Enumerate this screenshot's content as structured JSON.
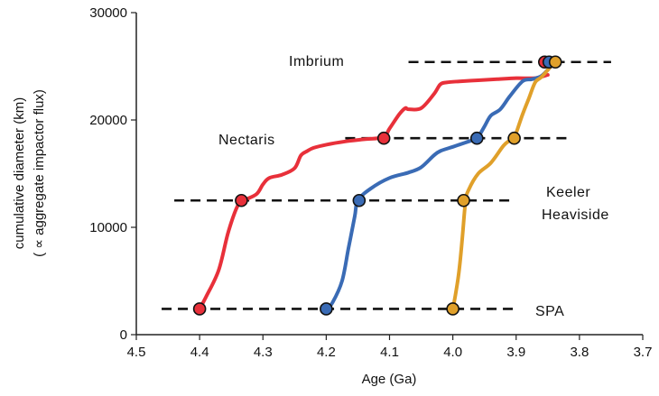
{
  "chart_data": {
    "type": "line",
    "title": "",
    "xlabel": "Age (Ga)",
    "ylabel_line1": "cumulative diameter (km)",
    "ylabel_line2": "( ∝ aggregate impactor flux)",
    "xlim": [
      4.5,
      3.7
    ],
    "ylim": [
      0,
      30000
    ],
    "x_reversed": true,
    "grid": false,
    "x_ticks": [
      "4.5",
      "4.4",
      "4.3",
      "4.2",
      "4.1",
      "4.0",
      "3.9",
      "3.8",
      "3.7"
    ],
    "y_ticks": [
      "0",
      "10000",
      "20000",
      "30000"
    ],
    "series": [
      {
        "color": "#e8303a",
        "x": [
          4.4,
          4.39,
          4.37,
          4.355,
          4.34,
          4.33,
          4.31,
          4.3,
          4.29,
          4.27,
          4.25,
          4.24,
          4.23,
          4.22,
          4.2,
          4.17,
          4.14,
          4.11,
          4.1,
          4.085,
          4.075,
          4.07,
          4.05,
          4.03,
          4.02,
          4.01,
          3.99,
          3.96,
          3.93,
          3.9,
          3.87,
          3.85
        ],
        "y": [
          2400,
          3500,
          6000,
          9500,
          12000,
          12500,
          13100,
          14000,
          14600,
          14900,
          15500,
          16700,
          17100,
          17400,
          17700,
          18000,
          18200,
          18400,
          19200,
          20500,
          21100,
          21000,
          21100,
          22400,
          23300,
          23500,
          23600,
          23700,
          23800,
          23900,
          23900,
          24200
        ]
      },
      {
        "color": "#3a6bb5",
        "x": [
          4.2,
          4.19,
          4.175,
          4.165,
          4.155,
          4.15,
          4.13,
          4.1,
          4.07,
          4.05,
          4.03,
          4.02,
          4.0,
          3.98,
          3.965,
          3.96,
          3.95,
          3.94,
          3.925,
          3.91,
          3.89,
          3.875,
          3.86,
          3.845
        ],
        "y": [
          2400,
          3000,
          5000,
          8000,
          11000,
          12500,
          13600,
          14600,
          15100,
          15600,
          16700,
          17100,
          17500,
          17900,
          18200,
          18400,
          19400,
          20400,
          21000,
          22200,
          23600,
          23800,
          24100,
          25000
        ]
      },
      {
        "color": "#e0a02a",
        "x": [
          4.0,
          3.995,
          3.99,
          3.985,
          3.98,
          3.975,
          3.96,
          3.94,
          3.92,
          3.91,
          3.905,
          3.9,
          3.89,
          3.88,
          3.87,
          3.86,
          3.845
        ],
        "y": [
          2400,
          4000,
          6000,
          9000,
          12400,
          13500,
          15000,
          16000,
          17600,
          18100,
          18300,
          18800,
          20500,
          22000,
          23500,
          24000,
          25000
        ]
      }
    ],
    "markers": [
      {
        "x": 4.4,
        "y": 2400,
        "color": "#e8303a"
      },
      {
        "x": 4.334,
        "y": 12500,
        "color": "#e8303a"
      },
      {
        "x": 4.109,
        "y": 18300,
        "color": "#e8303a"
      },
      {
        "x": 3.855,
        "y": 25400,
        "color": "#e8303a"
      },
      {
        "x": 4.2,
        "y": 2400,
        "color": "#3a6bb5"
      },
      {
        "x": 4.148,
        "y": 12500,
        "color": "#3a6bb5"
      },
      {
        "x": 3.962,
        "y": 18300,
        "color": "#3a6bb5"
      },
      {
        "x": 3.848,
        "y": 25400,
        "color": "#3a6bb5"
      },
      {
        "x": 4.0,
        "y": 2400,
        "color": "#e0a02a"
      },
      {
        "x": 3.983,
        "y": 12500,
        "color": "#e0a02a"
      },
      {
        "x": 3.903,
        "y": 18300,
        "color": "#e0a02a"
      },
      {
        "x": 3.838,
        "y": 25400,
        "color": "#e0a02a"
      }
    ],
    "reference_lines": [
      {
        "name": "SPA",
        "y": 2400,
        "x_from": 4.46,
        "x_to": 3.9
      },
      {
        "name": "Keeler Heaviside",
        "y": 12500,
        "x_from": 4.44,
        "x_to": 3.91
      },
      {
        "name": "Nectaris",
        "y": 18300,
        "x_from": 4.17,
        "x_to": 3.82
      },
      {
        "name": "Imbrium",
        "y": 25400,
        "x_from": 4.07,
        "x_to": 3.75
      }
    ],
    "annotations": {
      "imbrium": "Imbrium",
      "nectaris": "Nectaris",
      "keeler": "Keeler",
      "heaviside": "Heaviside",
      "spa": "SPA"
    }
  }
}
